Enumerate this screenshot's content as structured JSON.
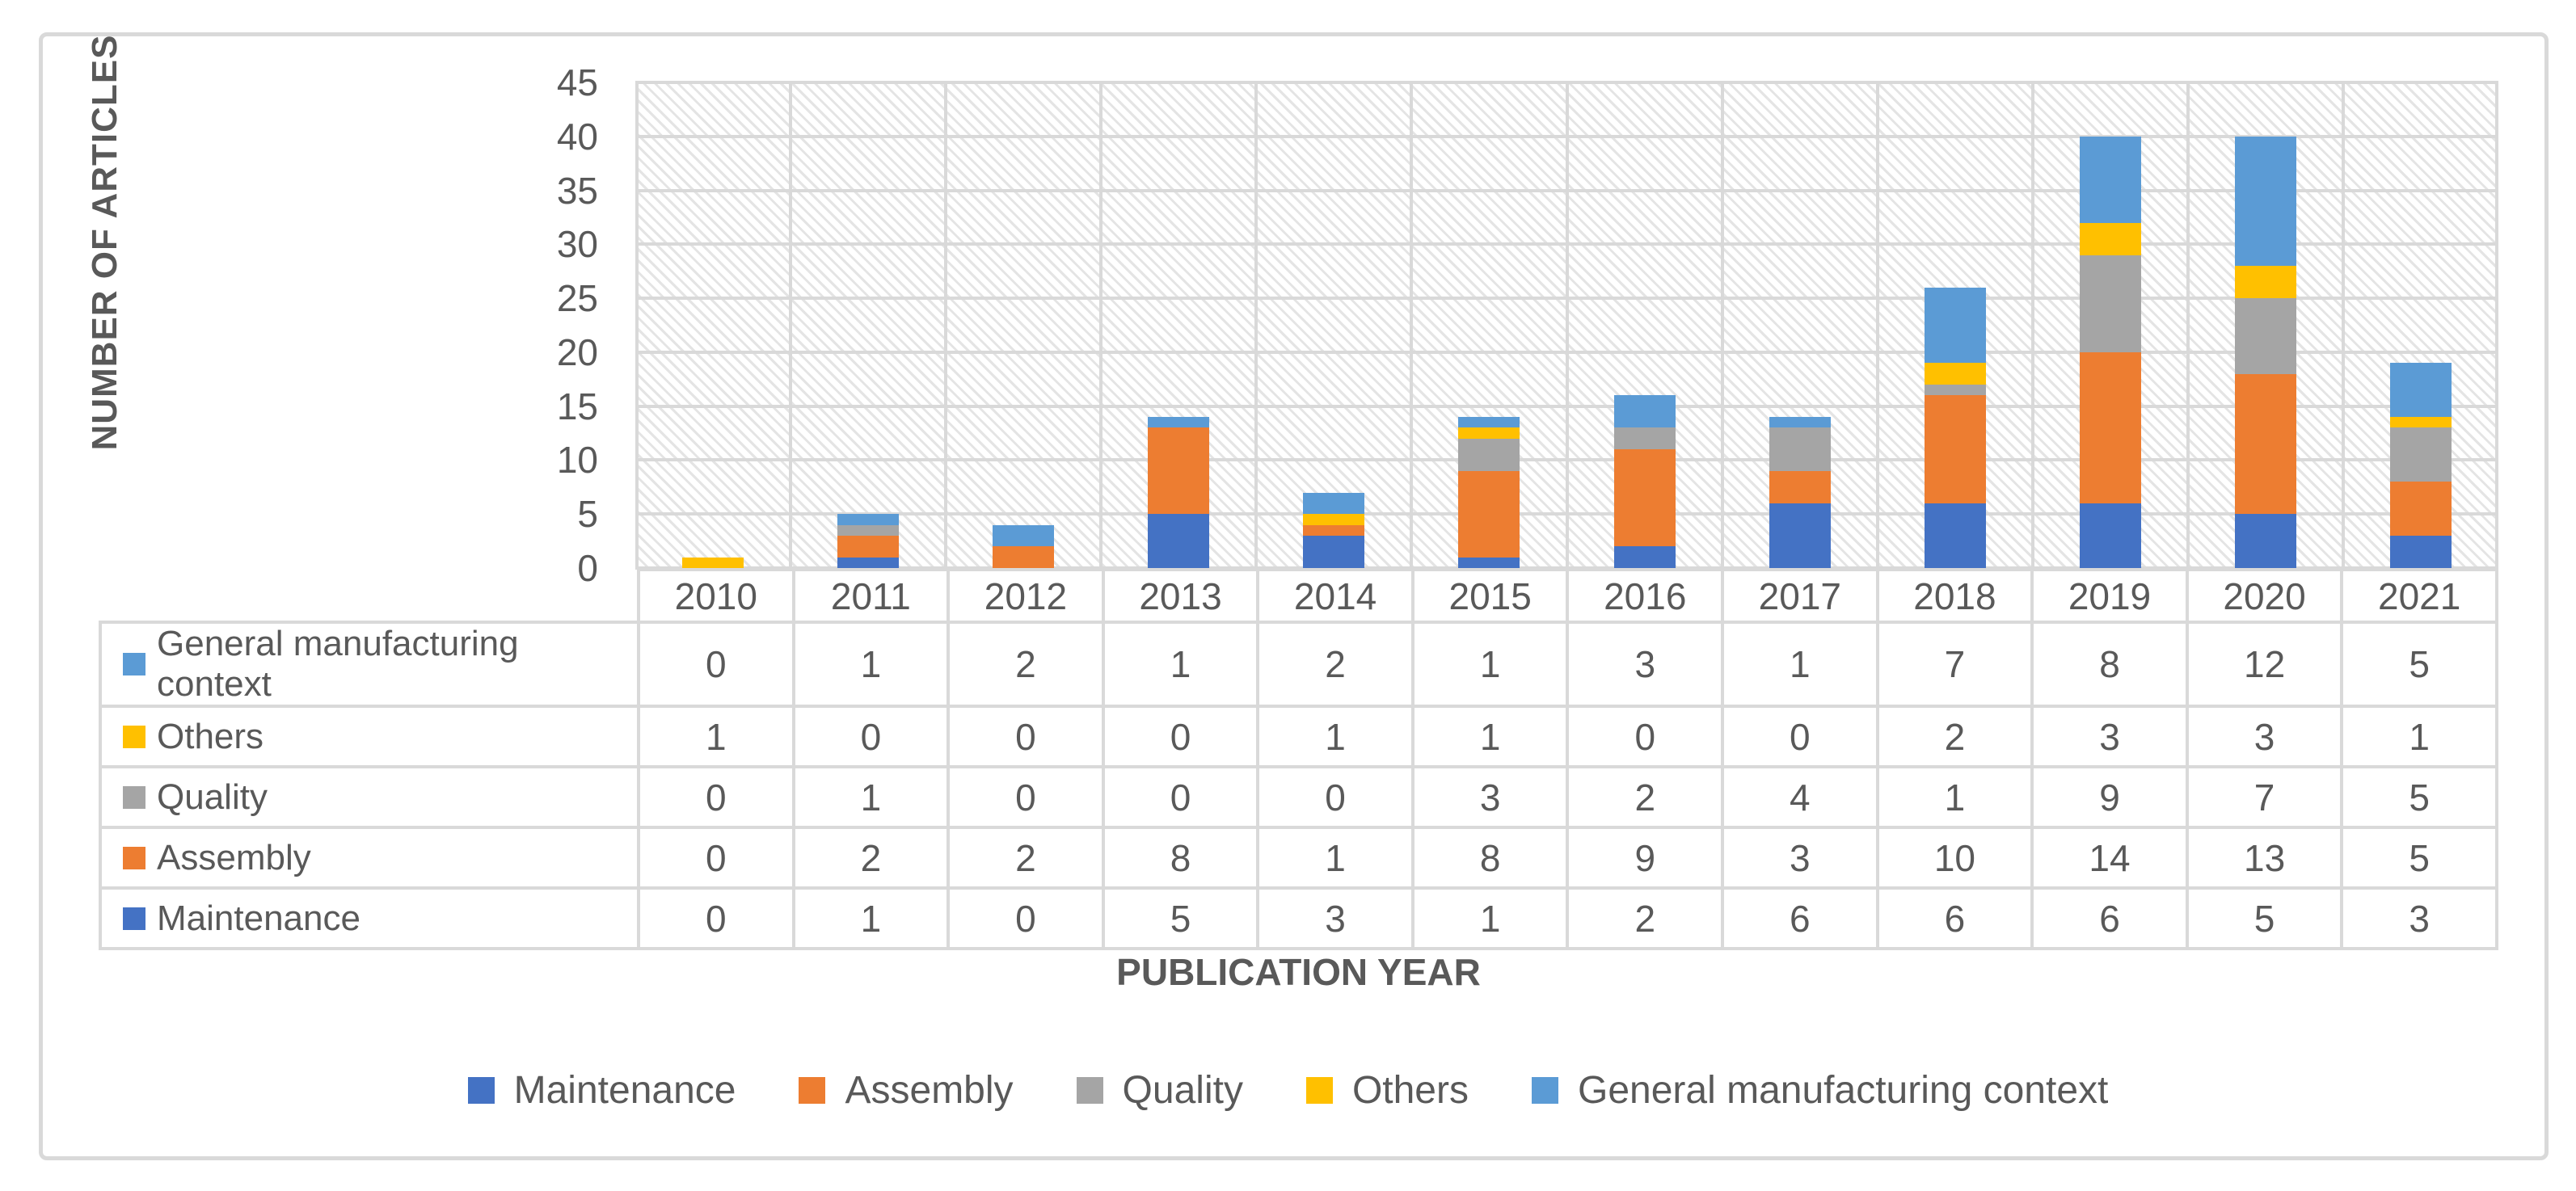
{
  "chart": {
    "y_axis_title": "NUMBER OF ARTICLES",
    "x_axis_title": "PUBLICATION YEAR",
    "y_ticks": [
      45,
      40,
      35,
      30,
      25,
      20,
      15,
      10,
      5,
      0
    ]
  },
  "chart_data": {
    "type": "bar",
    "stacked": true,
    "title": "",
    "xlabel": "PUBLICATION YEAR",
    "ylabel": "NUMBER OF ARTICLES",
    "ylim": [
      0,
      45
    ],
    "grid": true,
    "legend_position": "bottom",
    "plot_background": "diagonal-hatch",
    "categories": [
      "2010",
      "2011",
      "2012",
      "2013",
      "2014",
      "2015",
      "2016",
      "2017",
      "2018",
      "2019",
      "2020",
      "2021"
    ],
    "series": [
      {
        "name": "Maintenance",
        "color": "#4472C4",
        "values": [
          0,
          1,
          0,
          5,
          3,
          1,
          2,
          6,
          6,
          6,
          5,
          3
        ]
      },
      {
        "name": "Assembly",
        "color": "#ED7D31",
        "values": [
          0,
          2,
          2,
          8,
          1,
          8,
          9,
          3,
          10,
          14,
          13,
          5
        ]
      },
      {
        "name": "Quality",
        "color": "#A5A5A5",
        "values": [
          0,
          1,
          0,
          0,
          0,
          3,
          2,
          4,
          1,
          9,
          7,
          5
        ]
      },
      {
        "name": "Others",
        "color": "#FFC000",
        "values": [
          1,
          0,
          0,
          0,
          1,
          1,
          0,
          0,
          2,
          3,
          3,
          1
        ]
      },
      {
        "name": "General manufacturing context",
        "color": "#5B9BD5",
        "values": [
          0,
          1,
          2,
          1,
          2,
          1,
          3,
          1,
          7,
          8,
          12,
          5
        ]
      }
    ]
  },
  "table": {
    "year_headers": [
      "2010",
      "2011",
      "2012",
      "2013",
      "2014",
      "2015",
      "2016",
      "2017",
      "2018",
      "2019",
      "2020",
      "2021"
    ],
    "rows": [
      {
        "label": "General manufacturing context",
        "color": "#5B9BD5",
        "values": [
          "0",
          "1",
          "2",
          "1",
          "2",
          "1",
          "3",
          "1",
          "7",
          "8",
          "12",
          "5"
        ]
      },
      {
        "label": "Others",
        "color": "#FFC000",
        "values": [
          "1",
          "0",
          "0",
          "0",
          "1",
          "1",
          "0",
          "0",
          "2",
          "3",
          "3",
          "1"
        ]
      },
      {
        "label": "Quality",
        "color": "#A5A5A5",
        "values": [
          "0",
          "1",
          "0",
          "0",
          "0",
          "3",
          "2",
          "4",
          "1",
          "9",
          "7",
          "5"
        ]
      },
      {
        "label": "Assembly",
        "color": "#ED7D31",
        "values": [
          "0",
          "2",
          "2",
          "8",
          "1",
          "8",
          "9",
          "3",
          "10",
          "14",
          "13",
          "5"
        ]
      },
      {
        "label": "Maintenance",
        "color": "#4472C4",
        "values": [
          "0",
          "1",
          "0",
          "5",
          "3",
          "1",
          "2",
          "6",
          "6",
          "6",
          "5",
          "3"
        ]
      }
    ]
  },
  "legend": {
    "items": [
      {
        "label": "Maintenance",
        "color": "#4472C4"
      },
      {
        "label": "Assembly",
        "color": "#ED7D31"
      },
      {
        "label": "Quality",
        "color": "#A5A5A5"
      },
      {
        "label": "Others",
        "color": "#FFC000"
      },
      {
        "label": "General manufacturing context",
        "color": "#5B9BD5"
      }
    ]
  },
  "colors": {
    "grid": "#d9d9d9",
    "text": "#595959",
    "hatch": "#e4e4e4",
    "frame_border": "#d9d9d9"
  }
}
